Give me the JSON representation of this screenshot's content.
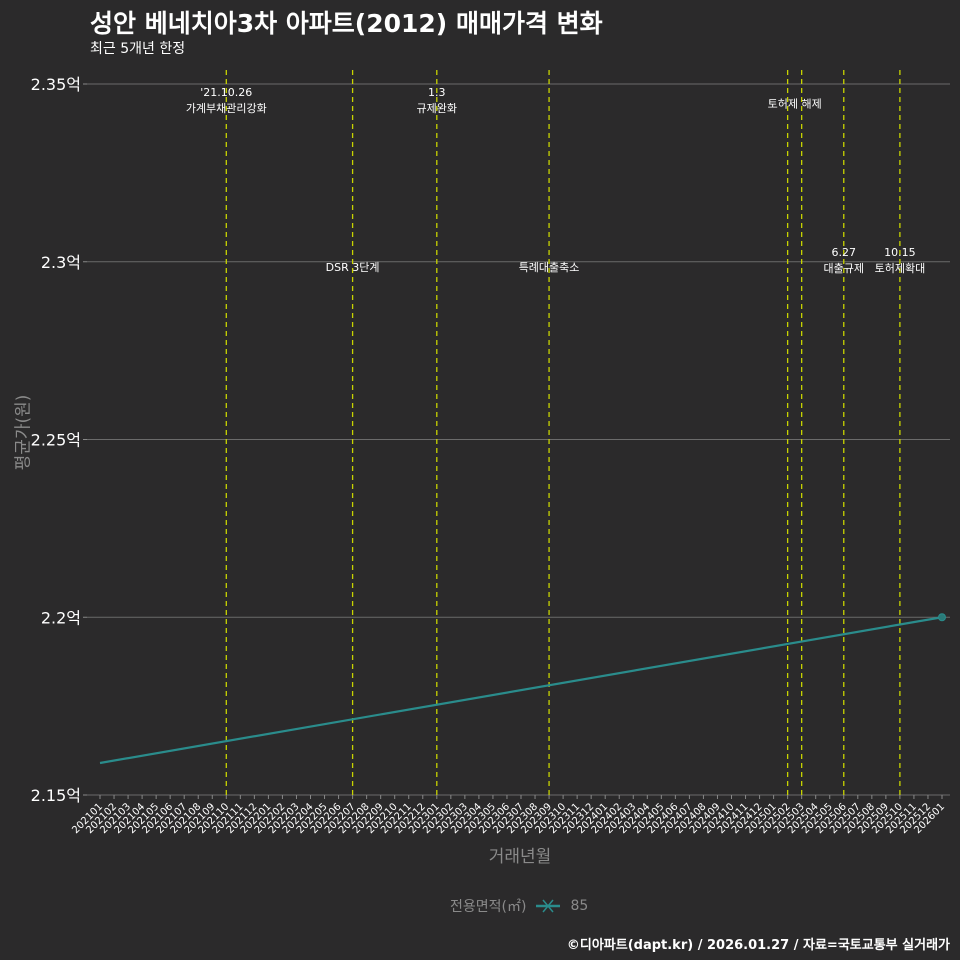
{
  "chart_data": {
    "type": "line",
    "title": "성안 베네치아3차 아파트(2012) 매매가격 변화",
    "subtitle": "최근 5개년 한정",
    "xlabel": "거래년월",
    "ylabel": "평균가(원)",
    "categories": [
      "202101",
      "202102",
      "202103",
      "202104",
      "202105",
      "202106",
      "202107",
      "202108",
      "202109",
      "202110",
      "202111",
      "202112",
      "202201",
      "202202",
      "202203",
      "202204",
      "202205",
      "202206",
      "202207",
      "202208",
      "202209",
      "202210",
      "202211",
      "202212",
      "202301",
      "202302",
      "202303",
      "202304",
      "202305",
      "202306",
      "202307",
      "202308",
      "202309",
      "202310",
      "202311",
      "202312",
      "202401",
      "202402",
      "202403",
      "202404",
      "202405",
      "202406",
      "202407",
      "202408",
      "202409",
      "202410",
      "202411",
      "202412",
      "202501",
      "202502",
      "202503",
      "202504",
      "202505",
      "202506",
      "202507",
      "202508",
      "202509",
      "202510",
      "202511",
      "202512",
      "202601"
    ],
    "ylim": [
      2.15,
      2.35
    ],
    "yticks": [
      2.15,
      2.2,
      2.25,
      2.3,
      2.35
    ],
    "ytick_labels": [
      "2.15억",
      "2.2억",
      "2.25억",
      "2.3억",
      "2.35억"
    ],
    "grid": true,
    "series": [
      {
        "name": "85",
        "color": "#2a8c8c",
        "points": [
          {
            "x": "202101",
            "y": 2.159,
            "marker": false
          },
          {
            "x": "202601",
            "y": 2.2,
            "marker": true
          }
        ]
      }
    ],
    "legend": {
      "title": "전용면적(㎡)",
      "position": "bottom"
    },
    "events": [
      {
        "x": "202110",
        "lines": [
          "'21.10.26",
          "가계부채관리강화"
        ],
        "level": 2.345
      },
      {
        "x": "202207",
        "lines": [
          "DSR 3단계"
        ],
        "level": 2.2985
      },
      {
        "x": "202301",
        "lines": [
          "1.3",
          "규제완화"
        ],
        "level": 2.345
      },
      {
        "x": "202309",
        "lines": [
          "특례대출축소"
        ],
        "level": 2.2985
      },
      {
        "x": "202502",
        "lines": [],
        "level": null
      },
      {
        "x": "202503",
        "lines": [],
        "level": null
      },
      {
        "x": "202506",
        "lines": [
          "6.27",
          "대출규제"
        ],
        "level": 2.3
      },
      {
        "x": "202510",
        "lines": [
          "10.15",
          "토허제확대"
        ],
        "level": 2.3
      }
    ],
    "extra_annotations": [
      {
        "x_between": [
          "202502",
          "202503"
        ],
        "text": "토허제 해제",
        "level": 2.3445
      }
    ],
    "event_line_color": "#c8d400"
  },
  "caption": "©디아파트(dapt.kr) / 2026.01.27 / 자료=국토교통부 실거래가"
}
